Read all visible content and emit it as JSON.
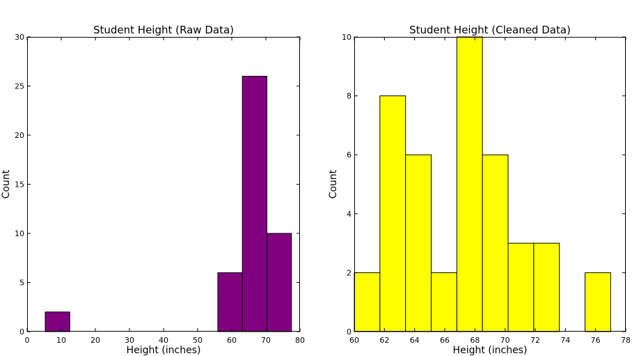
{
  "chart_data": [
    {
      "type": "bar",
      "title": "Student Height (Raw Data)",
      "xlabel": "Height (inches)",
      "ylabel": "Count",
      "xlim": [
        0,
        80
      ],
      "ylim": [
        0,
        30
      ],
      "xticks": [
        0,
        10,
        20,
        30,
        40,
        50,
        60,
        70,
        80
      ],
      "yticks": [
        0,
        5,
        10,
        15,
        20,
        25,
        30
      ],
      "bar_color": "#800080",
      "bins": [
        {
          "x0": 5.3,
          "x1": 12.5,
          "count": 2
        },
        {
          "x0": 55.9,
          "x1": 63.1,
          "count": 6
        },
        {
          "x0": 63.1,
          "x1": 70.3,
          "count": 26
        },
        {
          "x0": 70.3,
          "x1": 77.5,
          "count": 10
        }
      ]
    },
    {
      "type": "bar",
      "title": "Student Height (Cleaned Data)",
      "xlabel": "Height (inches)",
      "ylabel": "Count",
      "xlim": [
        60,
        78
      ],
      "ylim": [
        0,
        10
      ],
      "xticks": [
        60,
        62,
        64,
        66,
        68,
        70,
        72,
        74,
        76,
        78
      ],
      "yticks": [
        0,
        2,
        4,
        6,
        8,
        10
      ],
      "bar_color": "#ffff00",
      "bins": [
        {
          "x0": 60.0,
          "x1": 61.7,
          "count": 2
        },
        {
          "x0": 61.7,
          "x1": 63.4,
          "count": 8
        },
        {
          "x0": 63.4,
          "x1": 65.1,
          "count": 6
        },
        {
          "x0": 65.1,
          "x1": 66.8,
          "count": 2
        },
        {
          "x0": 66.8,
          "x1": 68.5,
          "count": 10
        },
        {
          "x0": 68.5,
          "x1": 70.2,
          "count": 6
        },
        {
          "x0": 70.2,
          "x1": 71.9,
          "count": 3
        },
        {
          "x0": 71.9,
          "x1": 73.6,
          "count": 3
        },
        {
          "x0": 73.6,
          "x1": 75.3,
          "count": 0
        },
        {
          "x0": 75.3,
          "x1": 77.0,
          "count": 2
        }
      ]
    }
  ]
}
